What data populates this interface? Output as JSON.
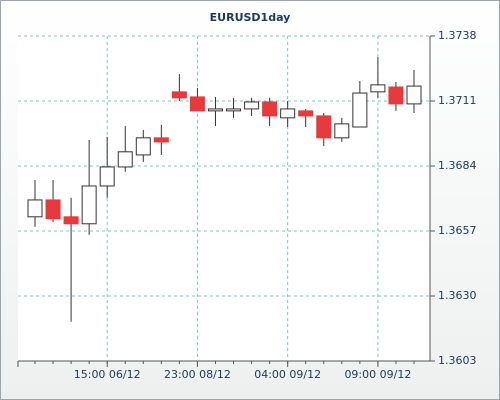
{
  "chart_data": {
    "type": "candlestick",
    "title": "EURUSD1day",
    "categories": [
      null,
      null,
      null,
      null,
      "15:00 06/12",
      null,
      null,
      null,
      null,
      "23:00 08/12",
      null,
      null,
      null,
      null,
      "04:00 09/12",
      null,
      null,
      null,
      null,
      "09:00 09/12",
      null,
      null
    ],
    "open": [
      1.36629,
      1.36699,
      1.36629,
      1.366,
      1.36757,
      1.36836,
      1.36886,
      1.36957,
      1.37148,
      1.37127,
      1.37069,
      1.37069,
      1.37077,
      1.37106,
      1.3704,
      1.37069,
      1.37048,
      1.36957,
      1.37002,
      1.37148,
      1.37168,
      1.37098
    ],
    "high": [
      1.36782,
      1.36782,
      1.36708,
      1.36948,
      1.36961,
      1.37006,
      1.3699,
      1.37011,
      1.37222,
      1.37164,
      1.37127,
      1.37123,
      1.37123,
      1.37123,
      1.3711,
      1.37077,
      1.3706,
      1.3704,
      1.37193,
      1.37293,
      1.37189,
      1.37239
    ],
    "low": [
      1.36587,
      1.36608,
      1.36193,
      1.36554,
      1.36708,
      1.36816,
      1.36857,
      1.36886,
      1.3711,
      1.37069,
      1.37006,
      1.3704,
      1.37048,
      1.37006,
      1.37002,
      1.37002,
      1.36923,
      1.3694,
      1.37002,
      1.37123,
      1.37069,
      1.3706
    ],
    "close": [
      1.36699,
      1.36621,
      1.366,
      1.36757,
      1.36836,
      1.36899,
      1.36957,
      1.3694,
      1.37123,
      1.37069,
      1.37077,
      1.37077,
      1.37106,
      1.37048,
      1.37077,
      1.37048,
      1.36957,
      1.37015,
      1.37143,
      1.37177,
      1.37098,
      1.37172
    ],
    "up_color": "#ffffff",
    "down_color": "#e8393c",
    "ylim": [
      1.3603,
      1.3738
    ],
    "yticks": [
      1.3603,
      {
        "value": 1.363,
        "label": "1.3630"
      },
      1.3657,
      1.3684,
      1.3711,
      1.3738
    ],
    "grid": true
  }
}
